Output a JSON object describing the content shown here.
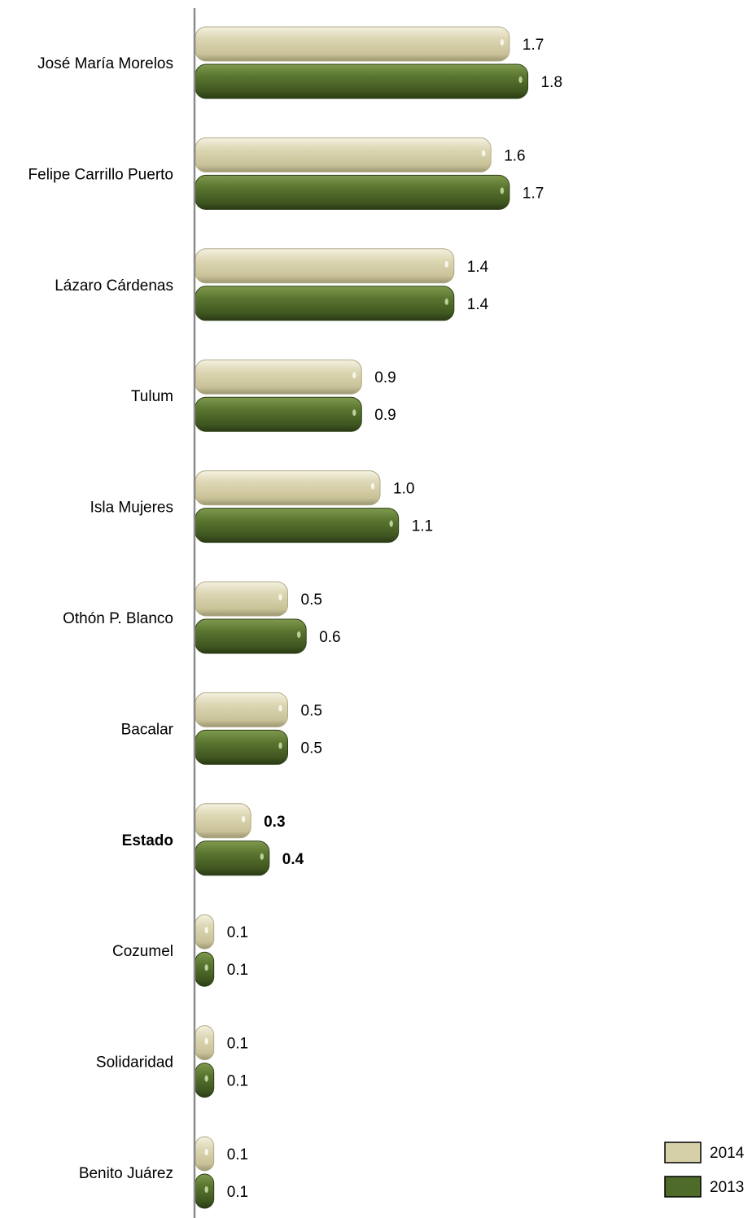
{
  "chart_data": {
    "type": "bar",
    "orientation": "horizontal",
    "categories": [
      "José María Morelos",
      "Felipe Carrillo Puerto",
      "Lázaro Cárdenas",
      "Tulum",
      "Isla Mujeres",
      "Othón P. Blanco",
      "Bacalar",
      "Estado",
      "Cozumel",
      "Solidaridad",
      "Benito Juárez"
    ],
    "highlight_category": "Estado",
    "series": [
      {
        "name": "2014",
        "color": "#d6d0a8",
        "values": [
          1.7,
          1.6,
          1.4,
          0.9,
          1.0,
          0.5,
          0.5,
          0.3,
          0.1,
          0.1,
          0.1
        ],
        "labels": [
          "1.7",
          "1.6",
          "1.4",
          "0.9",
          "1.0",
          "0.5",
          "0.5",
          "0.3",
          "0.1",
          "0.1",
          "0.1"
        ]
      },
      {
        "name": "2013",
        "color": "#4f6b2a",
        "values": [
          1.8,
          1.7,
          1.4,
          0.9,
          1.1,
          0.6,
          0.5,
          0.4,
          0.1,
          0.1,
          0.1
        ],
        "labels": [
          "1.8",
          "1.7",
          "1.4",
          "0.9",
          "1.1",
          "0.6",
          "0.5",
          "0.4",
          "0.1",
          "0.1",
          "0.1"
        ]
      }
    ],
    "xlim": [
      0,
      2.0
    ],
    "grid": false,
    "legend_position": "bottom-right"
  }
}
